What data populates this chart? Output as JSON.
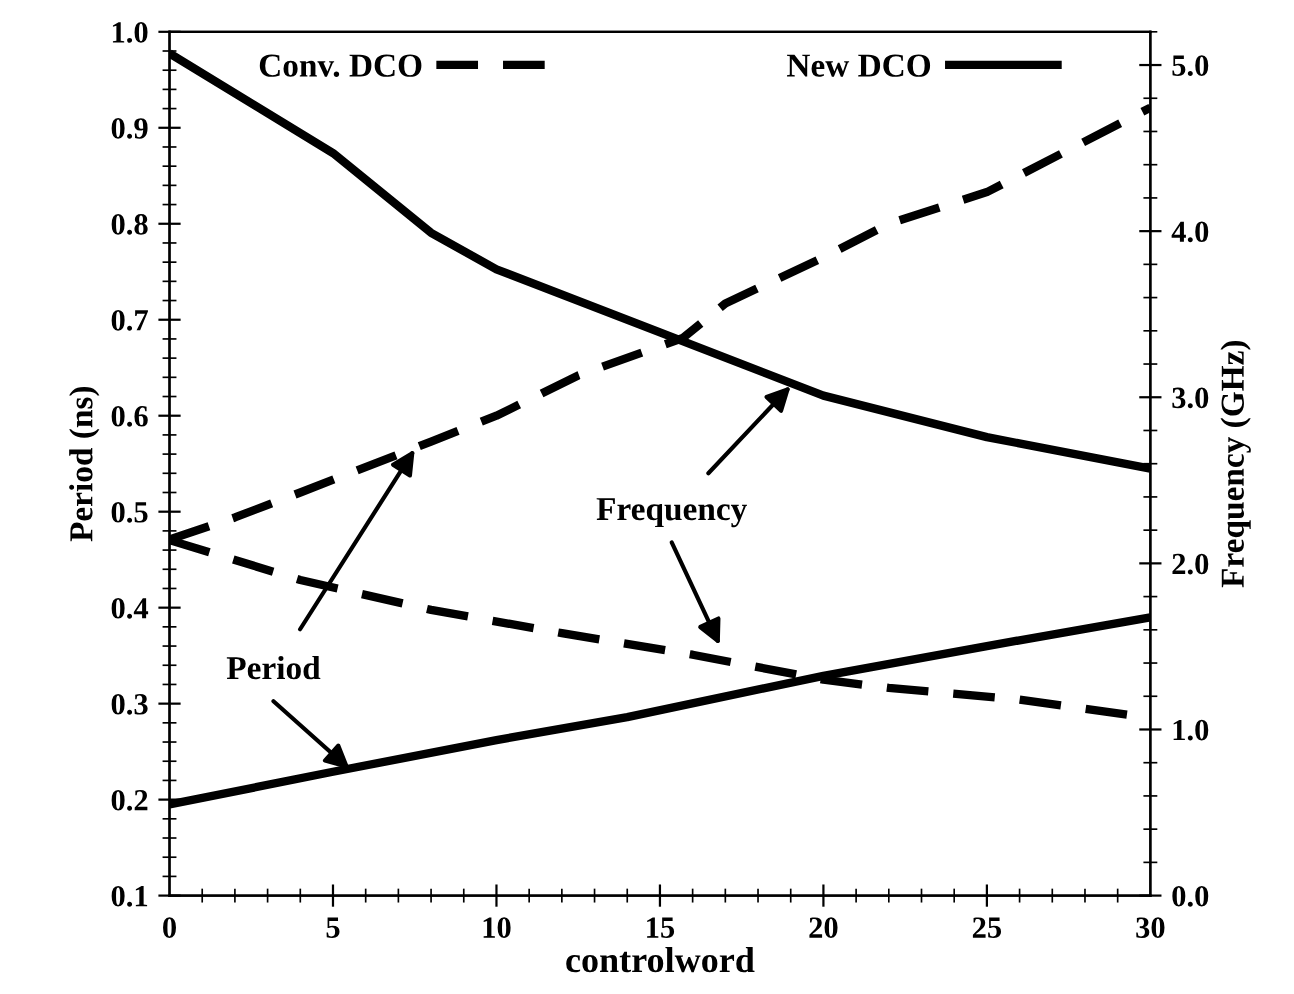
{
  "chart_data": {
    "type": "line",
    "xlabel": "controlword",
    "ylabel": "Period (ns)",
    "y2label": "Frequency (GHz)",
    "xlim": [
      0,
      30
    ],
    "xticks": [
      0,
      5,
      10,
      15,
      20,
      25,
      30
    ],
    "ylim": [
      0.1,
      1.0
    ],
    "yticks": [
      {
        "value": 0.1,
        "label": "0.1"
      },
      {
        "value": 0.2,
        "label": "0.2"
      },
      {
        "value": 0.3,
        "label": "0.3"
      },
      {
        "value": 0.4,
        "label": "0.4"
      },
      {
        "value": 0.5,
        "label": "0.5"
      },
      {
        "value": 0.6,
        "label": "0.6"
      },
      {
        "value": 0.7,
        "label": "0.7"
      },
      {
        "value": 0.8,
        "label": "0.8"
      },
      {
        "value": 0.9,
        "label": "0.9"
      },
      {
        "value": 1.0,
        "label": "1.0"
      }
    ],
    "y2lim": [
      0,
      5.2
    ],
    "y2ticks": [
      {
        "value": 0,
        "label": "0.0"
      },
      {
        "value": 1,
        "label": "1.0"
      },
      {
        "value": 2,
        "label": "2.0"
      },
      {
        "value": 3,
        "label": "3.0"
      },
      {
        "value": 4,
        "label": "4.0"
      },
      {
        "value": 5,
        "label": "5.0"
      }
    ],
    "legend": "top",
    "grid": false,
    "series": [
      {
        "name": "Conv. DCO",
        "color": "#000000",
        "line_style": "dashed",
        "x": [
          0,
          2,
          4,
          8,
          10,
          12.5,
          15.7,
          17,
          20,
          22,
          25,
          27.5,
          30
        ],
        "values": [
          0.471,
          0.494,
          0.52,
          0.573,
          0.6,
          0.642,
          0.681,
          0.717,
          0.765,
          0.8,
          0.833,
          0.877,
          0.921
        ]
      },
      {
        "color": "#000000",
        "line_style": "dashed",
        "axis": "y2",
        "x": [
          0,
          4,
          8,
          12,
          16,
          20,
          22,
          26,
          30
        ],
        "values": [
          2.14,
          1.9,
          1.72,
          1.58,
          1.45,
          1.3,
          1.25,
          1.18,
          1.07
        ]
      },
      {
        "name": "New DCO",
        "color": "#000000",
        "line_style": "solid",
        "x": [
          0,
          5,
          10,
          14,
          20,
          25,
          30
        ],
        "values": [
          0.195,
          0.229,
          0.262,
          0.286,
          0.329,
          0.36,
          0.39
        ]
      },
      {
        "color": "#000000",
        "line_style": "solid",
        "axis": "y2",
        "x": [
          0,
          5,
          8,
          10,
          15,
          20,
          25,
          30
        ],
        "values": [
          5.07,
          4.47,
          3.99,
          3.77,
          3.39,
          3.01,
          2.76,
          2.57
        ]
      }
    ],
    "annotations": [
      {
        "text": "Period",
        "x": 7.5,
        "y": 0.565
      },
      {
        "text": "Frequency",
        "x": 19,
        "y": 0.631
      }
    ]
  }
}
